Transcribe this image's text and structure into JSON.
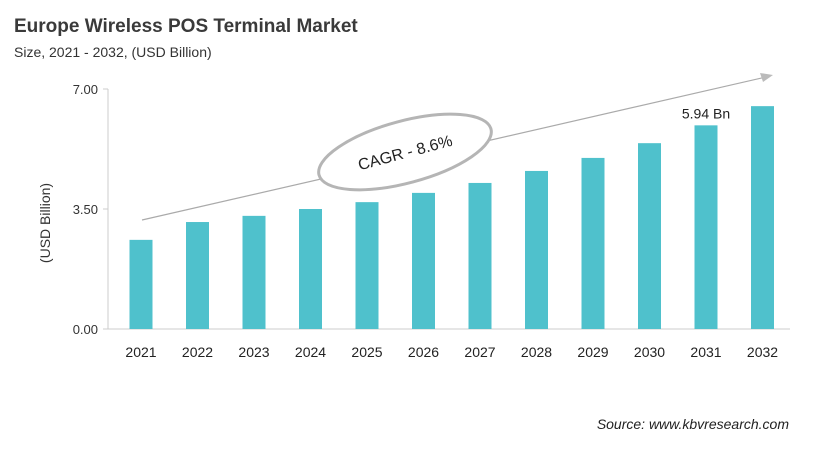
{
  "chart_data": {
    "type": "bar",
    "title": "Europe Wireless POS Terminal Market",
    "subtitle": "Size, 2021 - 2032, (USD Billion)",
    "xlabel": "",
    "ylabel": "(USD Billion)",
    "categories": [
      "2021",
      "2022",
      "2023",
      "2024",
      "2025",
      "2026",
      "2027",
      "2028",
      "2029",
      "2030",
      "2031",
      "2032"
    ],
    "values": [
      2.6,
      3.12,
      3.3,
      3.5,
      3.7,
      3.97,
      4.26,
      4.61,
      4.99,
      5.42,
      5.94,
      6.5
    ],
    "ylim": [
      0,
      7
    ],
    "yticks": [
      "0.00",
      "3.50",
      "7.00"
    ],
    "grid": false,
    "bar_color": "#4fc1cc",
    "data_labels": [
      {
        "category": "2031",
        "text": "5.94 Bn"
      }
    ],
    "annotation": "CAGR - 8.6%"
  },
  "source": "Source: www.kbvresearch.com"
}
